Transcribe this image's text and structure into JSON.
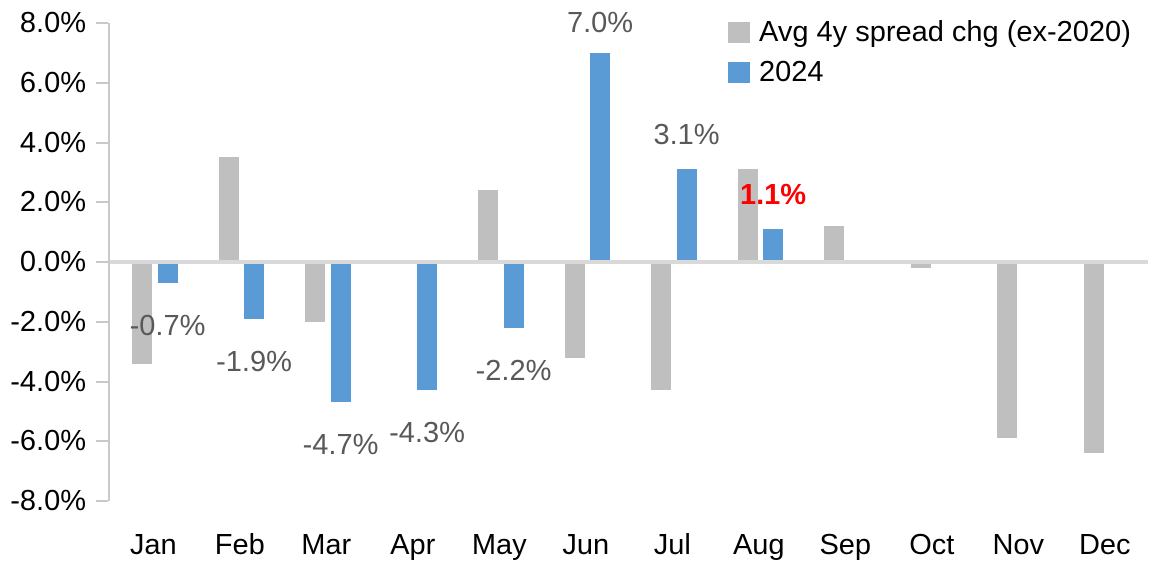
{
  "chart_data": {
    "type": "bar",
    "title": "",
    "xlabel": "",
    "ylabel": "",
    "categories": [
      "Jan",
      "Feb",
      "Mar",
      "Apr",
      "May",
      "Jun",
      "Jul",
      "Aug",
      "Sep",
      "Oct",
      "Nov",
      "Dec"
    ],
    "series": [
      {
        "name": "Avg 4y spread chg (ex-2020)",
        "color": "#BFBFBF",
        "values": [
          -3.4,
          3.5,
          -2.0,
          0.0,
          2.4,
          -3.2,
          -4.3,
          3.1,
          1.2,
          -0.2,
          -5.9,
          -6.4
        ]
      },
      {
        "name": "2024",
        "color": "#5B9BD5",
        "values": [
          -0.7,
          -1.9,
          -4.7,
          -4.3,
          -2.2,
          7.0,
          3.1,
          1.1,
          null,
          null,
          null,
          null
        ]
      }
    ],
    "data_labels": [
      {
        "series_index": 1,
        "point_index": 0,
        "text": "-0.7%",
        "color": "#595959",
        "bold": false
      },
      {
        "series_index": 1,
        "point_index": 1,
        "text": "-1.9%",
        "color": "#595959",
        "bold": false
      },
      {
        "series_index": 1,
        "point_index": 2,
        "text": "-4.7%",
        "color": "#595959",
        "bold": false
      },
      {
        "series_index": 1,
        "point_index": 3,
        "text": "-4.3%",
        "color": "#595959",
        "bold": false
      },
      {
        "series_index": 1,
        "point_index": 4,
        "text": "-2.2%",
        "color": "#595959",
        "bold": false
      },
      {
        "series_index": 1,
        "point_index": 5,
        "text": "7.0%",
        "color": "#595959",
        "bold": false
      },
      {
        "series_index": 1,
        "point_index": 6,
        "text": "3.1%",
        "color": "#595959",
        "bold": false
      },
      {
        "series_index": 1,
        "point_index": 7,
        "text": "1.1%",
        "color": "#FF0000",
        "bold": true
      }
    ],
    "y_axis": {
      "min": -8,
      "max": 8,
      "step": 2,
      "tick_labels": [
        "8.0%",
        "6.0%",
        "4.0%",
        "2.0%",
        "0.0%",
        "-2.0%",
        "-4.0%",
        "-6.0%",
        "-8.0%"
      ]
    },
    "legend": {
      "position": "top-right",
      "entries": [
        {
          "label": "Avg 4y spread chg (ex-2020)",
          "color": "#BFBFBF"
        },
        {
          "label": "2024",
          "color": "#5B9BD5"
        }
      ]
    },
    "grid": false,
    "colors": {
      "axis_line": "#C9C9C9",
      "zero_line": "#D9D9D9",
      "axis_text": "#000000",
      "data_label_text": "#595959",
      "highlight_label_text": "#FF0000"
    }
  }
}
